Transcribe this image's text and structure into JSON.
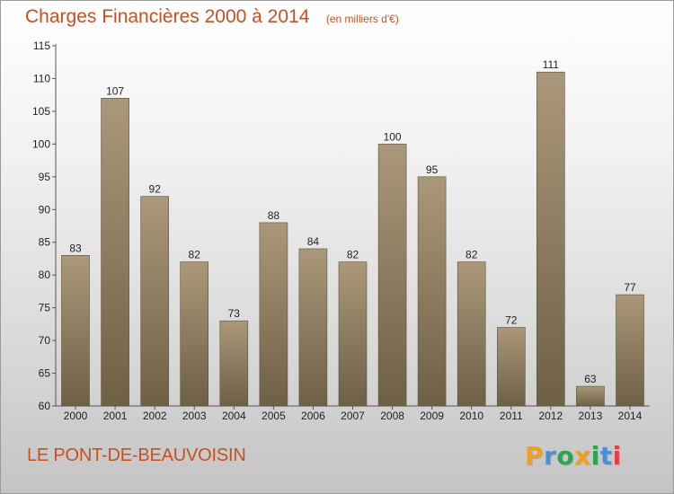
{
  "chart_data": {
    "type": "bar",
    "title": "Charges Financières 2000 à 2014",
    "unit_note": "(en milliers d'€)",
    "categories": [
      "2000",
      "2001",
      "2002",
      "2003",
      "2004",
      "2005",
      "2006",
      "2007",
      "2008",
      "2009",
      "2010",
      "2011",
      "2012",
      "2013",
      "2014"
    ],
    "values": [
      83,
      107,
      92,
      82,
      73,
      88,
      84,
      82,
      100,
      95,
      82,
      72,
      111,
      63,
      77
    ],
    "ylim": [
      60,
      115
    ],
    "yticks": [
      60,
      65,
      70,
      75,
      80,
      85,
      90,
      95,
      100,
      105,
      110,
      115
    ],
    "grid": false,
    "bar_color_top": "#ab987a",
    "bar_color_bottom": "#6f5f45"
  },
  "footer": {
    "commune": "LE PONT-DE-BEAUVOISIN"
  },
  "brand": {
    "letters": [
      "P",
      "r",
      "o",
      "x",
      "i",
      "t",
      "i"
    ],
    "colors": [
      "#f0a020",
      "#4a90d9",
      "#2aa64a",
      "#f0a020",
      "#2aa64a",
      "#4a90d9",
      "#e84040"
    ]
  },
  "colors": {
    "accent": "#c8501e"
  }
}
